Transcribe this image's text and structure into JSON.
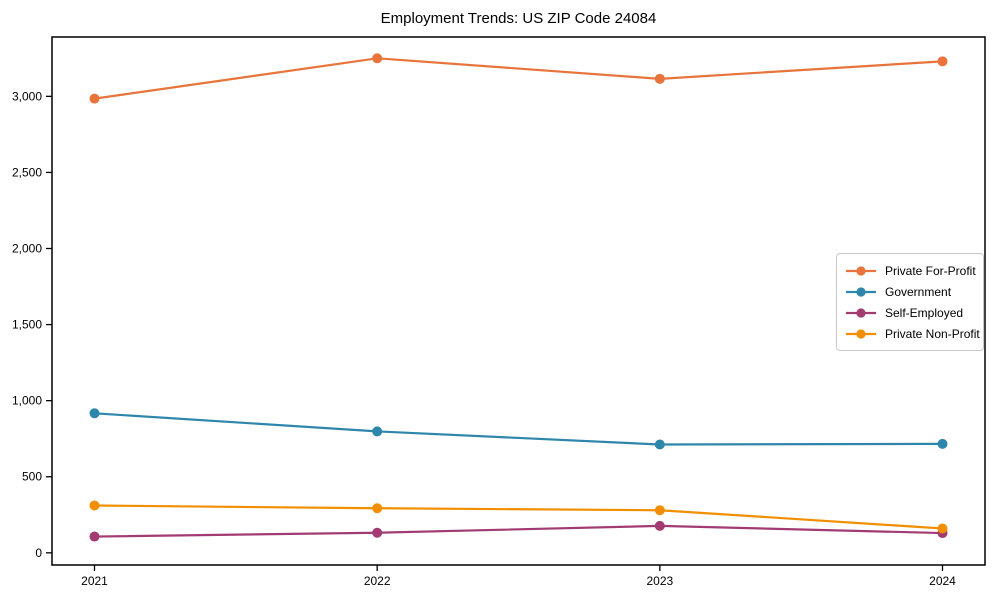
{
  "figure": {
    "title": "Employment Trends: US ZIP Code 24084",
    "background_color": "#ffffff",
    "axis_color": "#000000"
  },
  "chart_data": {
    "type": "line",
    "title": "Employment Trends: US ZIP Code 24084",
    "x": [
      2021,
      2022,
      2023,
      2024
    ],
    "x_tick_labels": [
      "2021",
      "2022",
      "2023",
      "2024"
    ],
    "y_ticks": [
      0,
      500,
      1000,
      1500,
      2000,
      2500,
      3000
    ],
    "y_tick_labels": [
      "0",
      "500",
      "1,000",
      "1,500",
      "2,000",
      "2,500",
      "3,000"
    ],
    "ylim": [
      -80,
      3390
    ],
    "xlabel": "",
    "ylabel": "",
    "grid": false,
    "legend_position": "center-right",
    "marker": "circle",
    "series": [
      {
        "name": "Private For-Profit",
        "color": "#E8743B",
        "values": [
          2985,
          3250,
          3115,
          3230
        ]
      },
      {
        "name": "Government",
        "color": "#2E86AB",
        "values": [
          917,
          798,
          712,
          716
        ]
      },
      {
        "name": "Self-Employed",
        "color": "#A23B72",
        "values": [
          107,
          132,
          177,
          130
        ]
      },
      {
        "name": "Private Non-Profit",
        "color": "#F18F01",
        "values": [
          311,
          293,
          280,
          160
        ]
      }
    ]
  }
}
